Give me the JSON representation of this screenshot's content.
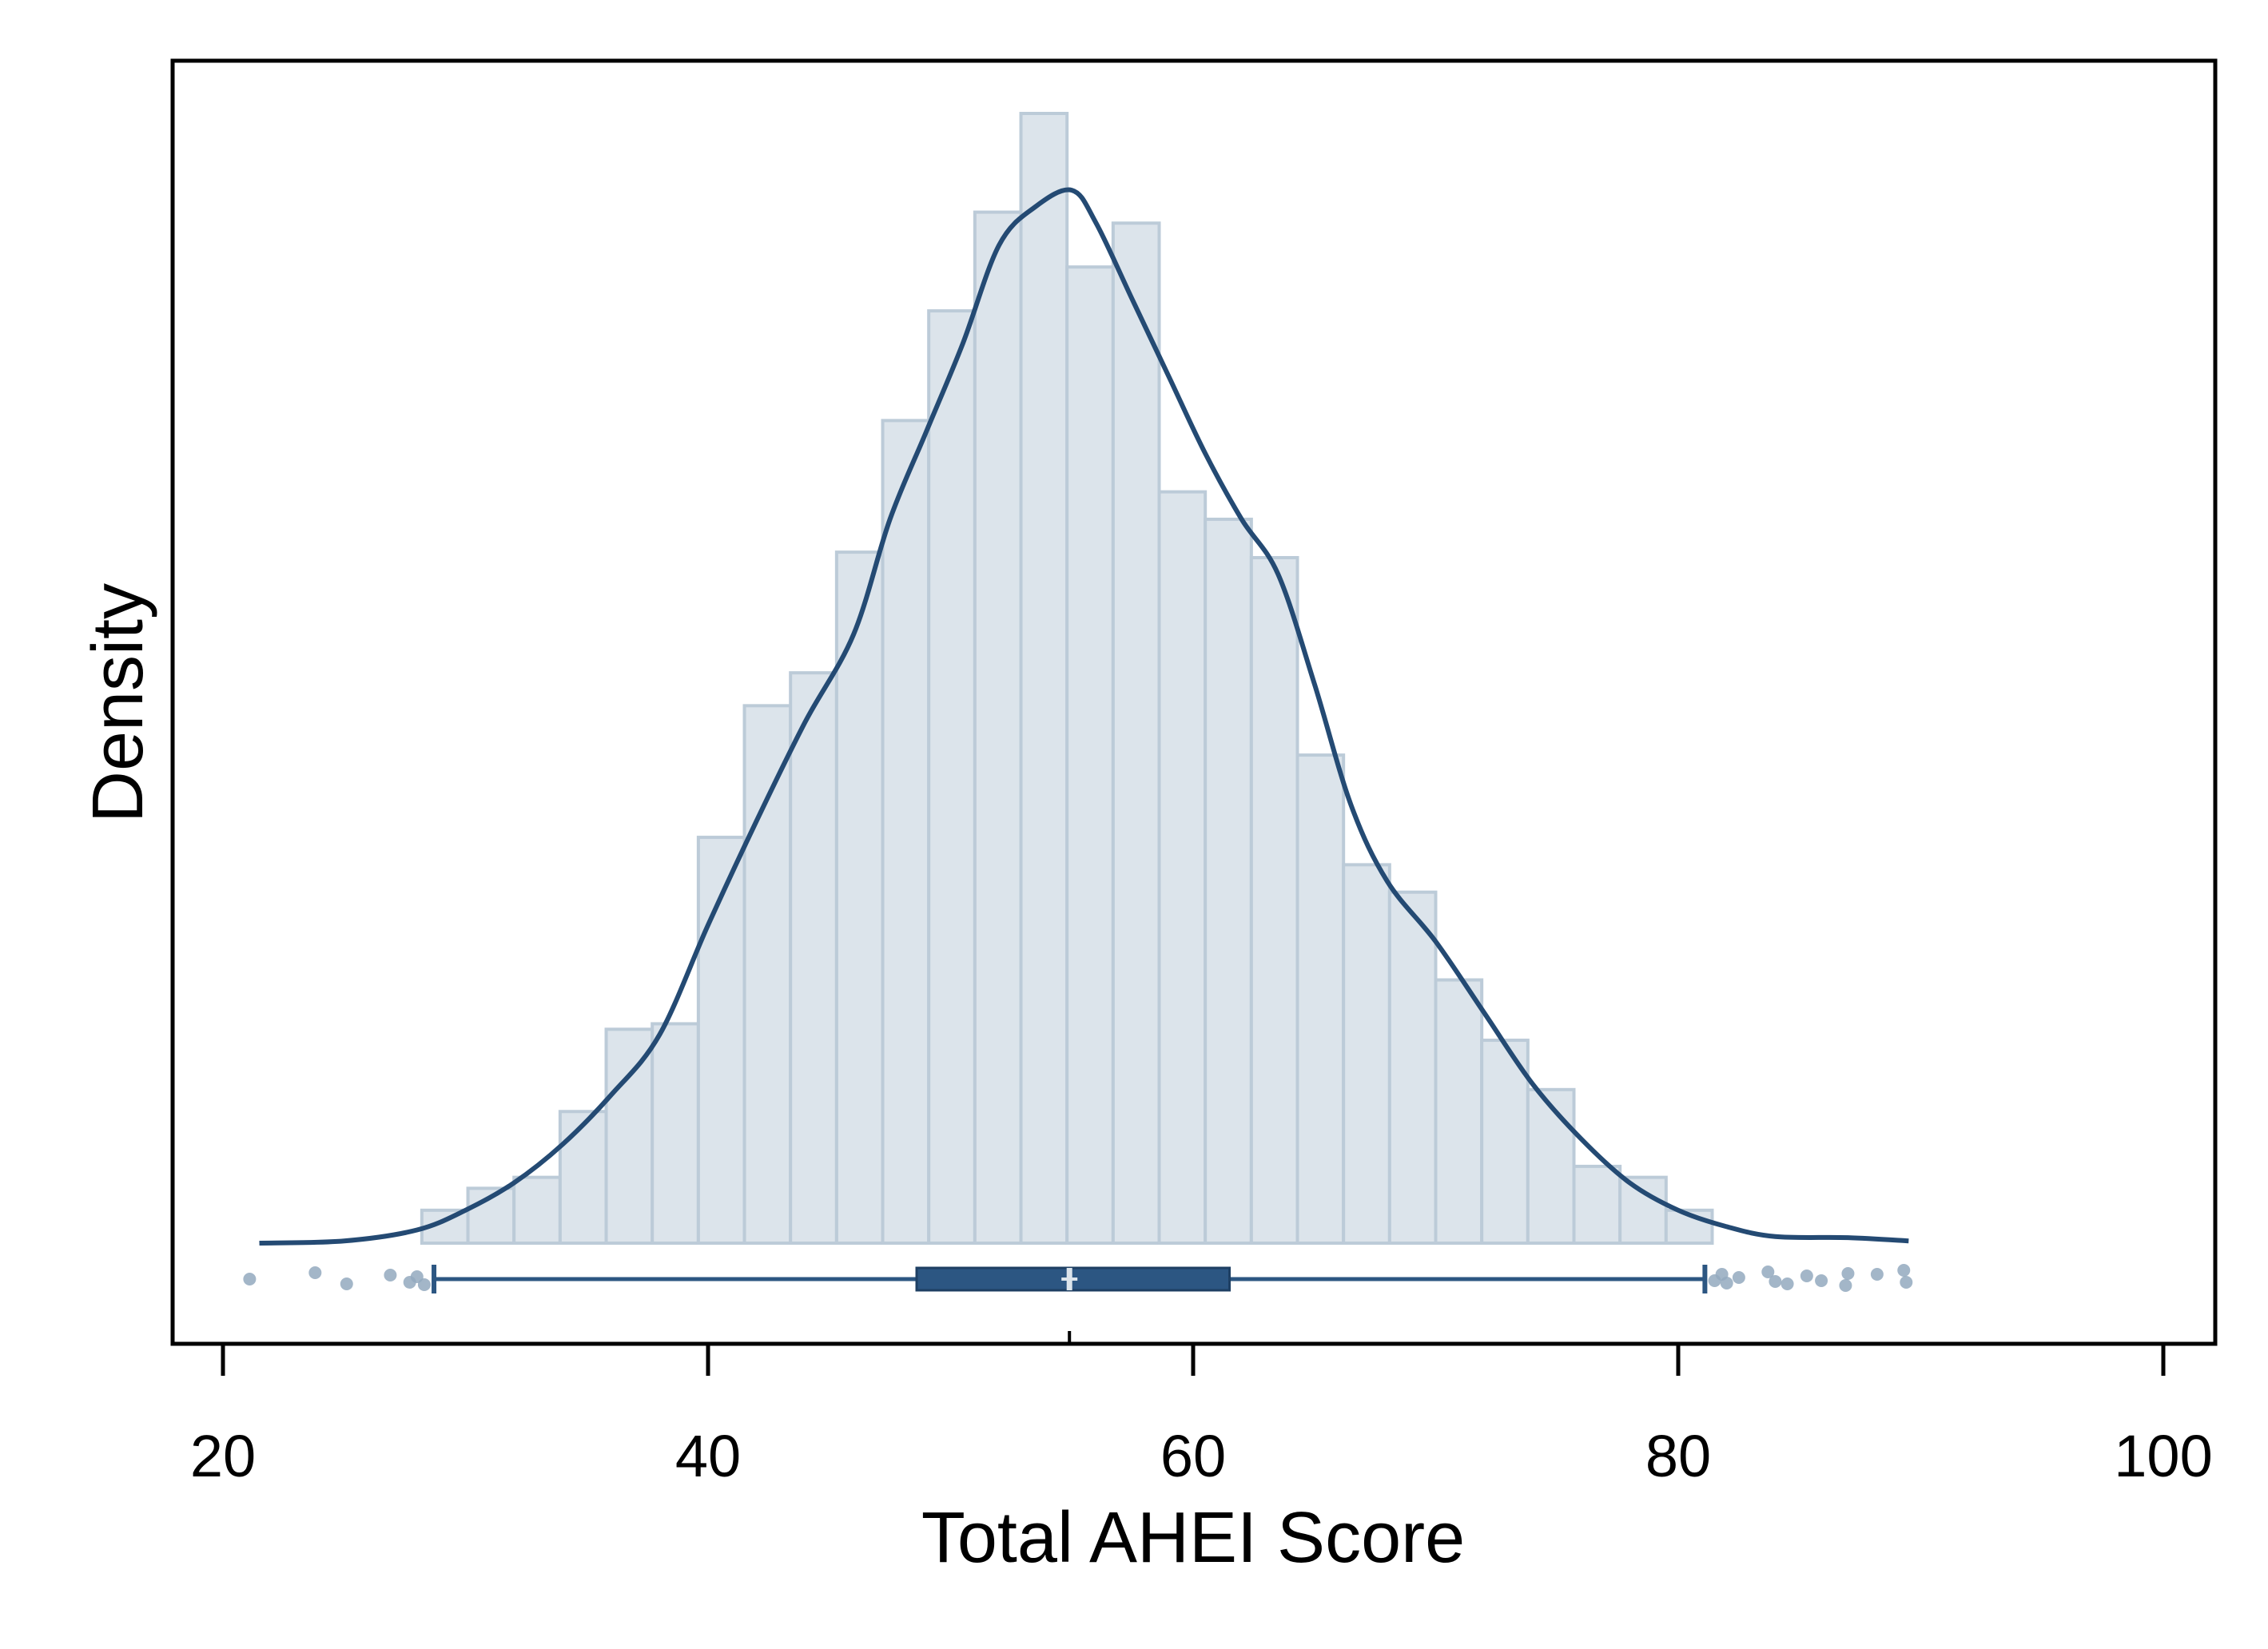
{
  "chart_data": {
    "type": "histogram",
    "xlabel": "Total AHEI Score",
    "ylabel": "Density",
    "xlim": [
      18,
      102
    ],
    "x_ticks": [
      20,
      40,
      60,
      80,
      100
    ],
    "y_tick_labels_shown": false,
    "bin_width": 1.9,
    "bins": [
      {
        "x0": 28.2,
        "x1": 30.1,
        "value": 0.3
      },
      {
        "x0": 30.1,
        "x1": 32.0,
        "value": 0.5
      },
      {
        "x0": 32.0,
        "x1": 33.9,
        "value": 0.6
      },
      {
        "x0": 33.9,
        "x1": 35.8,
        "value": 1.2
      },
      {
        "x0": 35.8,
        "x1": 37.7,
        "value": 1.95
      },
      {
        "x0": 37.7,
        "x1": 39.6,
        "value": 2.0
      },
      {
        "x0": 39.6,
        "x1": 41.5,
        "value": 3.7
      },
      {
        "x0": 41.5,
        "x1": 43.4,
        "value": 4.9
      },
      {
        "x0": 43.4,
        "x1": 45.3,
        "value": 5.2
      },
      {
        "x0": 45.3,
        "x1": 47.2,
        "value": 6.3
      },
      {
        "x0": 47.2,
        "x1": 49.1,
        "value": 7.5
      },
      {
        "x0": 49.1,
        "x1": 51.0,
        "value": 8.5
      },
      {
        "x0": 51.0,
        "x1": 52.9,
        "value": 9.4
      },
      {
        "x0": 52.9,
        "x1": 54.8,
        "value": 10.3
      },
      {
        "x0": 54.8,
        "x1": 56.7,
        "value": 8.9
      },
      {
        "x0": 56.7,
        "x1": 58.6,
        "value": 9.3
      },
      {
        "x0": 58.6,
        "x1": 60.5,
        "value": 6.85
      },
      {
        "x0": 60.5,
        "x1": 62.4,
        "value": 6.6
      },
      {
        "x0": 62.4,
        "x1": 64.3,
        "value": 6.25
      },
      {
        "x0": 64.3,
        "x1": 66.2,
        "value": 4.45
      },
      {
        "x0": 66.2,
        "x1": 68.1,
        "value": 3.45
      },
      {
        "x0": 68.1,
        "x1": 70.0,
        "value": 3.2
      },
      {
        "x0": 70.0,
        "x1": 71.9,
        "value": 2.4
      },
      {
        "x0": 71.9,
        "x1": 73.8,
        "value": 1.85
      },
      {
        "x0": 73.8,
        "x1": 75.7,
        "value": 1.4
      },
      {
        "x0": 75.7,
        "x1": 77.6,
        "value": 0.7
      },
      {
        "x0": 77.6,
        "x1": 79.5,
        "value": 0.6
      },
      {
        "x0": 79.5,
        "x1": 81.4,
        "value": 0.3
      }
    ],
    "density_curve": [
      {
        "x": 21.5,
        "y": 0.0
      },
      {
        "x": 25.0,
        "y": 0.02
      },
      {
        "x": 28.0,
        "y": 0.12
      },
      {
        "x": 30.0,
        "y": 0.3
      },
      {
        "x": 32.0,
        "y": 0.55
      },
      {
        "x": 34.0,
        "y": 0.9
      },
      {
        "x": 36.0,
        "y": 1.35
      },
      {
        "x": 38.0,
        "y": 1.9
      },
      {
        "x": 40.0,
        "y": 2.9
      },
      {
        "x": 42.0,
        "y": 3.85
      },
      {
        "x": 44.0,
        "y": 4.75
      },
      {
        "x": 46.0,
        "y": 5.55
      },
      {
        "x": 47.5,
        "y": 6.6
      },
      {
        "x": 49.0,
        "y": 7.4
      },
      {
        "x": 50.5,
        "y": 8.2
      },
      {
        "x": 52.0,
        "y": 9.1
      },
      {
        "x": 53.5,
        "y": 9.45
      },
      {
        "x": 55.0,
        "y": 9.6
      },
      {
        "x": 56.0,
        "y": 9.3
      },
      {
        "x": 57.5,
        "y": 8.6
      },
      {
        "x": 59.0,
        "y": 7.9
      },
      {
        "x": 60.5,
        "y": 7.2
      },
      {
        "x": 62.0,
        "y": 6.6
      },
      {
        "x": 63.5,
        "y": 6.1
      },
      {
        "x": 65.0,
        "y": 5.1
      },
      {
        "x": 66.5,
        "y": 4.0
      },
      {
        "x": 68.0,
        "y": 3.3
      },
      {
        "x": 70.0,
        "y": 2.75
      },
      {
        "x": 72.0,
        "y": 2.1
      },
      {
        "x": 74.0,
        "y": 1.45
      },
      {
        "x": 76.0,
        "y": 0.95
      },
      {
        "x": 78.0,
        "y": 0.55
      },
      {
        "x": 80.0,
        "y": 0.3
      },
      {
        "x": 82.0,
        "y": 0.15
      },
      {
        "x": 84.0,
        "y": 0.06
      },
      {
        "x": 87.0,
        "y": 0.05
      },
      {
        "x": 89.5,
        "y": 0.02
      }
    ],
    "boxplot": {
      "whisker_low": 28.7,
      "q1": 48.6,
      "median": 54.9,
      "q3": 61.5,
      "whisker_high": 81.1,
      "outliers": [
        21.1,
        23.8,
        25.1,
        26.9,
        27.7,
        28.0,
        28.3,
        81.5,
        81.8,
        82.0,
        82.5,
        83.7,
        84.0,
        84.5,
        85.3,
        85.9,
        86.9,
        87.0,
        88.2,
        89.3,
        89.4
      ]
    },
    "colors": {
      "bar_fill": "#dce4eb",
      "bar_stroke": "#bccbd8",
      "curve": "#244a73",
      "box": "#2c5682",
      "outlier": "#93a9be",
      "median_mark": "#dce4eb",
      "frame": "#000000"
    }
  }
}
